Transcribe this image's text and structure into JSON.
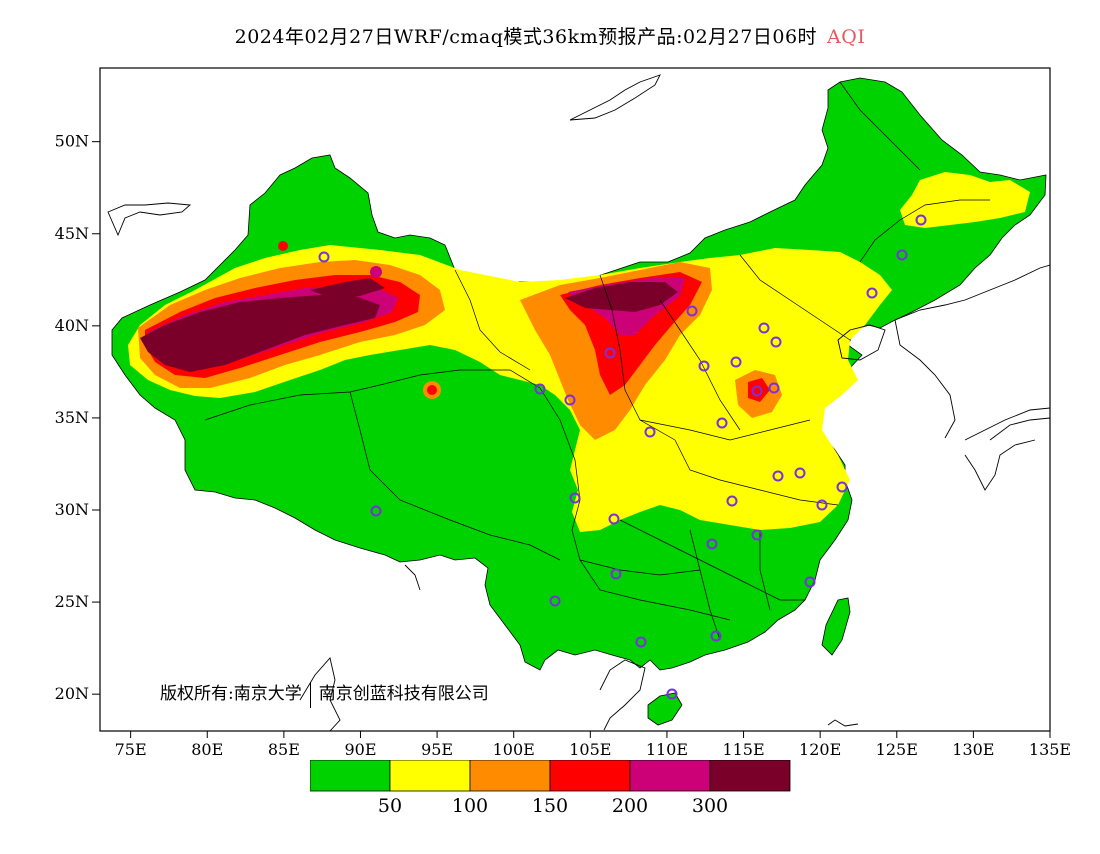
{
  "title": {
    "text": "2024年02月27日WRF/cmaq模式36km预报产品:02月27日06时",
    "product": "AQI",
    "product_color": "#e8585c"
  },
  "map": {
    "lon_range": [
      73,
      135
    ],
    "lat_range": [
      18,
      54
    ],
    "lat_ticks": [
      {
        "value": 20,
        "label": "20N"
      },
      {
        "value": 25,
        "label": "25N"
      },
      {
        "value": 30,
        "label": "30N"
      },
      {
        "value": 35,
        "label": "35N"
      },
      {
        "value": 40,
        "label": "40N"
      },
      {
        "value": 45,
        "label": "45N"
      },
      {
        "value": 50,
        "label": "50N"
      }
    ],
    "lon_ticks": [
      {
        "value": 75,
        "label": "75E"
      },
      {
        "value": 80,
        "label": "80E"
      },
      {
        "value": 85,
        "label": "85E"
      },
      {
        "value": 90,
        "label": "90E"
      },
      {
        "value": 95,
        "label": "95E"
      },
      {
        "value": 100,
        "label": "100E"
      },
      {
        "value": 105,
        "label": "105E"
      },
      {
        "value": 110,
        "label": "110E"
      },
      {
        "value": 115,
        "label": "115E"
      },
      {
        "value": 120,
        "label": "120E"
      },
      {
        "value": 125,
        "label": "125E"
      },
      {
        "value": 130,
        "label": "130E"
      },
      {
        "value": 135,
        "label": "135E"
      }
    ],
    "aqi_colors": [
      "#00d200",
      "#ffff00",
      "#ff8c00",
      "#ff0000",
      "#cc0077",
      "#7a0029"
    ],
    "city_marker_color": "#7b2fe0"
  },
  "legend": {
    "colors": [
      "#00d200",
      "#ffff00",
      "#ff8c00",
      "#ff0000",
      "#cc0077",
      "#7a0029"
    ],
    "labels": [
      "50",
      "100",
      "150",
      "200",
      "300"
    ]
  },
  "copyright": {
    "text": "版权所有:南京大学",
    "org": "南京创蓝科技有限公司"
  }
}
